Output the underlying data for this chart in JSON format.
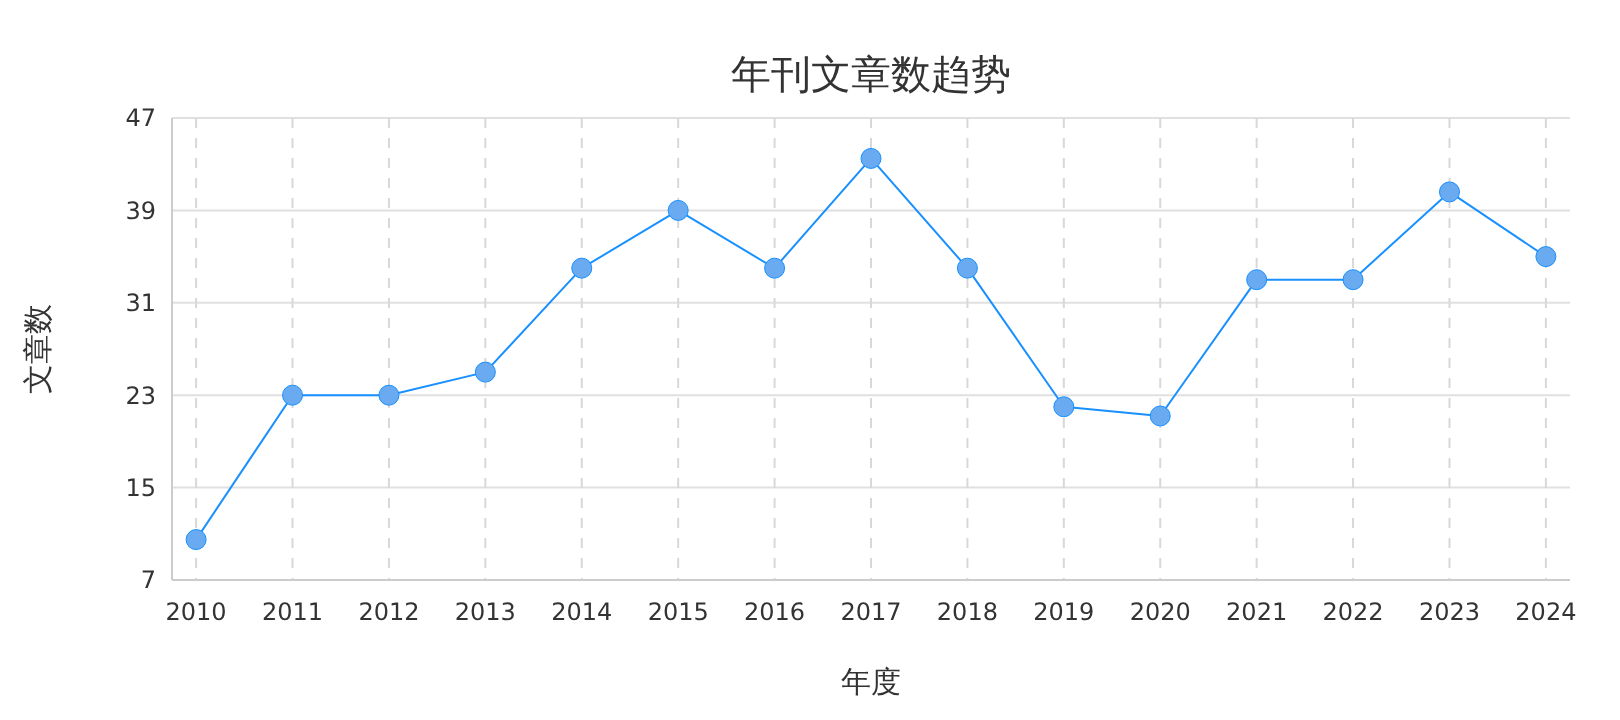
{
  "chart_data": {
    "type": "line",
    "title": "年刊文章数趋势",
    "xlabel": "年度",
    "ylabel": "文章数",
    "categories": [
      "2010",
      "2011",
      "2012",
      "2013",
      "2014",
      "2015",
      "2016",
      "2017",
      "2018",
      "2019",
      "2020",
      "2021",
      "2022",
      "2023",
      "2024"
    ],
    "series": [
      {
        "color": "#1890ff",
        "values": [
          10.5,
          23,
          23,
          25,
          34,
          39,
          34,
          43.5,
          34,
          22,
          21.2,
          33,
          33,
          40.6,
          35
        ]
      }
    ],
    "ylim": [
      7,
      47
    ],
    "yticks": [
      7,
      15,
      23,
      31,
      39,
      47
    ],
    "grid": true,
    "marker": "circle",
    "line_style": "solid"
  }
}
